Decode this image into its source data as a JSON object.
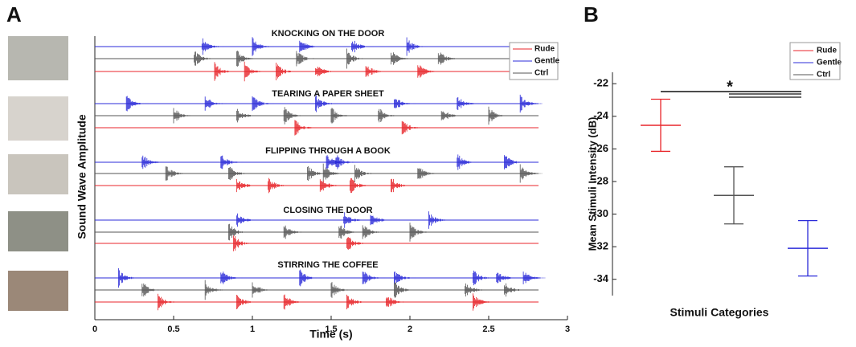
{
  "chart_data": [
    {
      "type": "waveform",
      "label": "A",
      "xlabel": "Time (s)",
      "ylabel": "Sound Wave Amplitude",
      "xlim": [
        0,
        3
      ],
      "xticks": [
        0,
        0.5,
        1,
        1.5,
        2,
        2.5,
        3
      ],
      "titles": [
        "KNOCKING ON THE DOOR",
        "TEARING A PAPER SHEET",
        "FLIPPING THROUGH A BOOK",
        "CLOSING THE DOOR",
        "STIRRING THE COFFEE"
      ],
      "series": [
        {
          "name": "Rude",
          "color": "#e8262b"
        },
        {
          "name": "Gentle",
          "color": "#2b2bd9"
        },
        {
          "name": "Ctrl",
          "color": "#555555"
        }
      ]
    },
    {
      "type": "errorbar",
      "label": "B",
      "xlabel": "Stimuli Categories",
      "ylabel": "Mean Stimuli Intensity (dB)",
      "ylim": [
        -35,
        -21.3
      ],
      "yticks": [
        -34,
        -32,
        -30,
        -28,
        -26,
        -24,
        -22
      ],
      "series": [
        {
          "name": "Rude",
          "color": "#e8262b",
          "values": [
            -24.55
          ],
          "errors": [
            1.6
          ]
        },
        {
          "name": "Gentle",
          "color": "#2b2bd9",
          "values": [
            -32.1
          ],
          "errors": [
            1.7
          ]
        },
        {
          "name": "Ctrl",
          "color": "#555555",
          "values": [
            -28.85
          ],
          "errors": [
            1.75
          ]
        }
      ],
      "annotation": "*"
    }
  ]
}
